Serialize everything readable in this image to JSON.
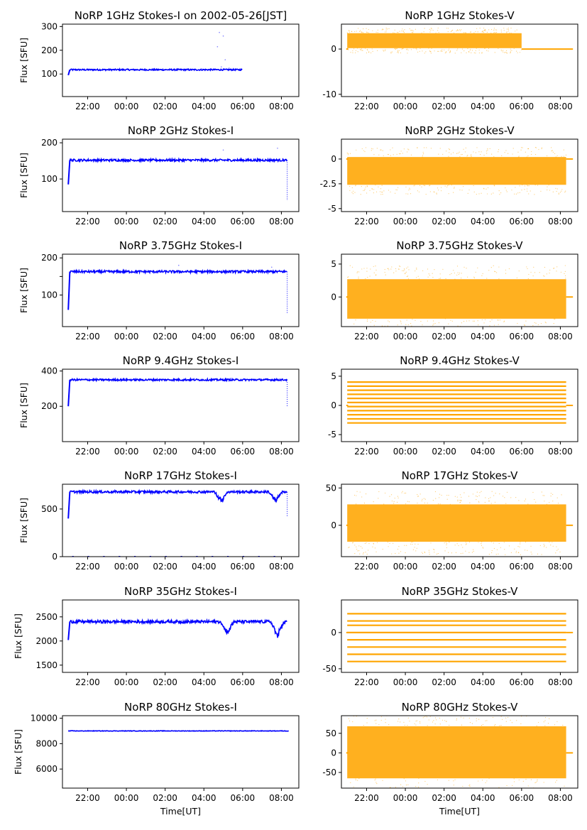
{
  "figure": {
    "x_axis_label": "Time[UT]",
    "y_axis_label": "Flux [SFU]",
    "x_ticks": [
      "22:00",
      "00:00",
      "02:00",
      "04:00",
      "06:00",
      "08:00"
    ]
  },
  "colors": {
    "stokes_i": "#0000ff",
    "stokes_v": "#ffa500"
  },
  "chart_data": [
    {
      "type": "scatter",
      "title": "NoRP 1GHz Stokes-I on 2002-05-26[JST]",
      "ylabel": "Flux [SFU]",
      "xlabel": "",
      "ylim": [
        5,
        310
      ],
      "yticks": [
        100,
        200,
        300
      ],
      "x_range_hours": [
        20.7,
        32.9
      ],
      "data_end_hour": 30.0,
      "level": 118,
      "ramp_start": 95,
      "noise": 3,
      "outliers": [
        [
          28.8,
          275
        ],
        [
          29.0,
          260
        ],
        [
          28.7,
          215
        ],
        [
          29.1,
          160
        ],
        [
          28.9,
          130
        ],
        [
          29.3,
          125
        ]
      ],
      "color": "#0000ff"
    },
    {
      "type": "scatter",
      "title": "NoRP 1GHz Stokes-V",
      "ylabel": "",
      "xlabel": "",
      "ylim": [
        -10.5,
        5.5
      ],
      "yticks": [
        -10,
        0
      ],
      "x_range_hours": [
        20.7,
        32.9
      ],
      "band": [
        0.2,
        3.5
      ],
      "flat_after_hour": 30.0,
      "flat_value": 0,
      "color": "#ffa500"
    },
    {
      "type": "scatter",
      "title": "NoRP 2GHz Stokes-I",
      "ylabel": "Flux [SFU]",
      "xlabel": "",
      "ylim": [
        10,
        210
      ],
      "yticks": [
        100,
        200
      ],
      "x_range_hours": [
        20.7,
        32.9
      ],
      "data_end_hour": 32.3,
      "level": 152,
      "ramp_start": 85,
      "noise": 3,
      "drop_to": 40,
      "outliers": [
        [
          31.8,
          185
        ],
        [
          29.0,
          180
        ]
      ],
      "color": "#0000ff"
    },
    {
      "type": "scatter",
      "title": "NoRP 2GHz Stokes-V",
      "ylabel": "",
      "xlabel": "",
      "ylim": [
        -5.3,
        2.0
      ],
      "yticks": [
        -5.0,
        -2.5,
        0.0
      ],
      "x_range_hours": [
        20.7,
        32.9
      ],
      "band": [
        -2.6,
        0.2
      ],
      "flat_value": 0,
      "color": "#ffa500"
    },
    {
      "type": "scatter",
      "title": "NoRP 3.75GHz Stokes-I",
      "ylabel": "Flux [SFU]",
      "xlabel": "",
      "ylim": [
        15,
        210
      ],
      "yticks": [
        100,
        150,
        200
      ],
      "ytick_labels": [
        "100",
        "",
        "200"
      ],
      "x_range_hours": [
        20.7,
        32.9
      ],
      "data_end_hour": 32.3,
      "level": 163,
      "ramp_start": 60,
      "noise": 3,
      "drop_to": 50,
      "outliers": [
        [
          26.7,
          180
        ],
        [
          31.5,
          175
        ]
      ],
      "color": "#0000ff"
    },
    {
      "type": "scatter",
      "title": "NoRP 3.75GHz Stokes-V",
      "ylabel": "",
      "xlabel": "",
      "ylim": [
        -4.5,
        6.5
      ],
      "yticks": [
        0,
        5
      ],
      "x_range_hours": [
        20.7,
        32.9
      ],
      "band": [
        -3.3,
        2.7
      ],
      "flat_value": 0,
      "color": "#ffa500"
    },
    {
      "type": "scatter",
      "title": "NoRP 9.4GHz Stokes-I",
      "ylabel": "Flux [SFU]",
      "xlabel": "",
      "ylim": [
        0,
        410
      ],
      "yticks": [
        200,
        400
      ],
      "x_range_hours": [
        20.7,
        32.9
      ],
      "data_end_hour": 32.3,
      "level": 350,
      "ramp_start": 200,
      "noise": 5,
      "drop_to": 200,
      "outliers": [],
      "color": "#0000ff"
    },
    {
      "type": "scatter",
      "title": "NoRP 9.4GHz Stokes-V",
      "ylabel": "",
      "xlabel": "",
      "ylim": [
        -6.2,
        6.2
      ],
      "yticks": [
        -5,
        0,
        5
      ],
      "x_range_hours": [
        20.7,
        32.9
      ],
      "lines": [
        -3,
        -2.3,
        -1.6,
        -0.9,
        -0.2,
        0.5,
        1.2,
        1.9,
        2.6,
        3.3,
        4.0
      ],
      "flat_value": 0,
      "color": "#ffa500"
    },
    {
      "type": "scatter",
      "title": "NoRP 17GHz Stokes-I",
      "ylabel": "Flux [SFU]",
      "xlabel": "",
      "ylim": [
        0,
        760
      ],
      "yticks": [
        0,
        500
      ],
      "x_range_hours": [
        20.7,
        32.9
      ],
      "data_end_hour": 32.3,
      "level": 680,
      "ramp_start": 400,
      "noise": 12,
      "drop_to": 420,
      "dips": [
        [
          28.9,
          560
        ],
        [
          31.7,
          560
        ]
      ],
      "zero_marks": true,
      "outliers": [],
      "color": "#0000ff"
    },
    {
      "type": "scatter",
      "title": "NoRP 17GHz Stokes-V",
      "ylabel": "",
      "xlabel": "",
      "ylim": [
        -42,
        55
      ],
      "yticks": [
        0,
        50
      ],
      "x_range_hours": [
        20.7,
        32.9
      ],
      "band": [
        -22,
        28
      ],
      "flat_value": 0,
      "color": "#ffa500"
    },
    {
      "type": "scatter",
      "title": "NoRP 35GHz Stokes-I",
      "ylabel": "Flux [SFU]",
      "xlabel": "",
      "ylim": [
        1350,
        2850
      ],
      "yticks": [
        1500,
        2000,
        2500
      ],
      "x_range_hours": [
        20.7,
        32.9
      ],
      "data_end_hour": 32.3,
      "level": 2400,
      "ramp_start": 2020,
      "noise": 30,
      "dips": [
        [
          29.2,
          2100
        ],
        [
          31.8,
          2050
        ]
      ],
      "outliers": [],
      "color": "#0000ff"
    },
    {
      "type": "scatter",
      "title": "NoRP 35GHz Stokes-V",
      "ylabel": "",
      "xlabel": "",
      "ylim": [
        -55,
        45
      ],
      "yticks": [
        -50,
        0
      ],
      "x_range_hours": [
        20.7,
        32.9
      ],
      "lines": [
        -40,
        -30,
        -20,
        -10,
        0,
        10,
        16,
        26
      ],
      "flat_value": 0,
      "color": "#ffa500"
    },
    {
      "type": "scatter",
      "title": "NoRP 80GHz Stokes-I",
      "ylabel": "Flux [SFU]",
      "xlabel": "Time[UT]",
      "ylim": [
        4500,
        10200
      ],
      "yticks": [
        6000,
        8000,
        10000
      ],
      "x_range_hours": [
        20.7,
        32.9
      ],
      "data_end_hour": 32.4,
      "level": 9000,
      "ramp_start": 9000,
      "noise": 20,
      "outliers": [],
      "color": "#0000ff"
    },
    {
      "type": "scatter",
      "title": "NoRP 80GHz Stokes-V",
      "ylabel": "",
      "xlabel": "Time[UT]",
      "ylim": [
        -90,
        95
      ],
      "yticks": [
        -50,
        0,
        50
      ],
      "x_range_hours": [
        20.7,
        32.9
      ],
      "band": [
        -65,
        68
      ],
      "flat_value": 0,
      "color": "#ffa500"
    }
  ]
}
